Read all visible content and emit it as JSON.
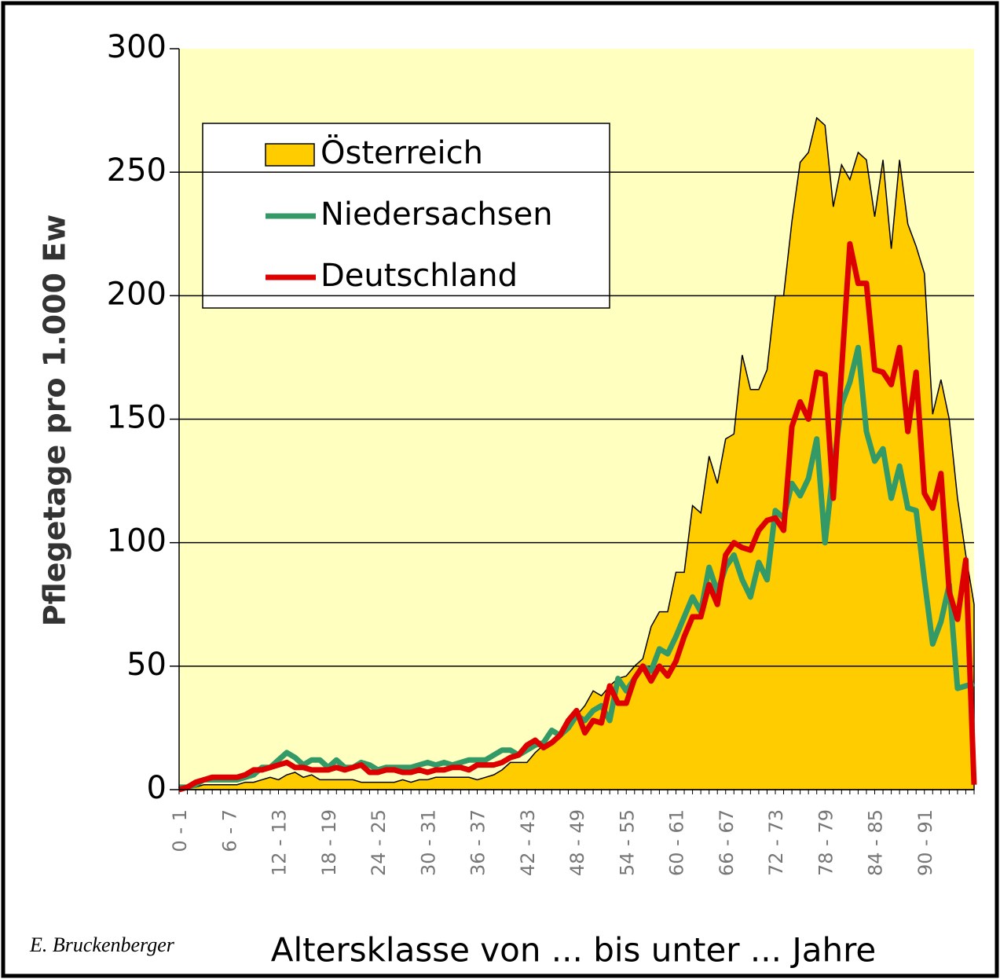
{
  "chart_data": {
    "type": "line",
    "ylabel": "Pflegetage pro 1.000 Ew",
    "xlabel": "Altersklasse von ... bis unter ... Jahre",
    "author": "E. Bruckenberger",
    "categories": [
      "0 - 1",
      null,
      null,
      null,
      null,
      null,
      "6 - 7",
      null,
      null,
      null,
      null,
      null,
      "12 - 13",
      null,
      null,
      null,
      null,
      null,
      "18 - 19",
      null,
      null,
      null,
      null,
      null,
      "24 - 25",
      null,
      null,
      null,
      null,
      null,
      "30 - 31",
      null,
      null,
      null,
      null,
      null,
      "36 - 37",
      null,
      null,
      null,
      null,
      null,
      "42 - 43",
      null,
      null,
      null,
      null,
      null,
      "48 - 49",
      null,
      null,
      null,
      null,
      null,
      "54 - 55",
      null,
      null,
      null,
      null,
      null,
      "60 - 61",
      null,
      null,
      null,
      null,
      null,
      "66 - 67",
      null,
      null,
      null,
      null,
      null,
      "72 - 73",
      null,
      null,
      null,
      null,
      null,
      "78 - 79",
      null,
      null,
      null,
      null,
      null,
      "84 - 85",
      null,
      null,
      null,
      null,
      null,
      "90 - 91",
      null,
      null,
      null,
      null,
      null,
      null
    ],
    "series": [
      {
        "name": "Österreich",
        "type": "area",
        "color": "#ffcc00",
        "values": [
          0,
          1,
          1,
          2,
          2,
          2,
          2,
          2,
          3,
          3,
          4,
          5,
          4,
          6,
          7,
          5,
          6,
          4,
          4,
          4,
          4,
          4,
          3,
          3,
          3,
          3,
          3,
          4,
          3,
          4,
          4,
          5,
          5,
          5,
          5,
          5,
          4,
          5,
          6,
          8,
          11,
          11,
          11,
          15,
          18,
          20,
          22,
          25,
          30,
          34,
          40,
          38,
          42,
          45,
          46,
          50,
          53,
          66,
          72,
          72,
          88,
          88,
          115,
          112,
          135,
          124,
          142,
          144,
          176,
          162,
          162,
          170,
          200,
          200,
          230,
          254,
          258,
          272,
          269,
          236,
          253,
          247,
          258,
          255,
          232,
          255,
          219,
          255,
          229,
          220,
          209,
          152,
          166,
          150,
          118,
          95,
          75
        ]
      },
      {
        "name": "Niedersachsen",
        "type": "line",
        "color": "#339966",
        "values": [
          1,
          1,
          2,
          4,
          4,
          4,
          4,
          4,
          5,
          6,
          9,
          9,
          12,
          15,
          13,
          10,
          12,
          12,
          9,
          12,
          9,
          9,
          11,
          10,
          8,
          9,
          9,
          9,
          9,
          10,
          11,
          10,
          11,
          10,
          11,
          12,
          12,
          12,
          14,
          16,
          16,
          14,
          16,
          18,
          19,
          24,
          22,
          25,
          30,
          28,
          32,
          34,
          28,
          45,
          40,
          45,
          50,
          48,
          57,
          55,
          62,
          70,
          78,
          72,
          90,
          80,
          90,
          95,
          85,
          78,
          92,
          85,
          113,
          110,
          124,
          119,
          126,
          142,
          100,
          130,
          156,
          165,
          179,
          145,
          133,
          138,
          118,
          131,
          114,
          113,
          85,
          59,
          68,
          83,
          41,
          42,
          43
        ]
      },
      {
        "name": "Deutschland",
        "type": "line",
        "color": "#dd0000",
        "values": [
          0,
          1,
          3,
          4,
          5,
          5,
          5,
          5,
          6,
          8,
          8,
          9,
          10,
          11,
          9,
          9,
          8,
          8,
          8,
          9,
          8,
          9,
          10,
          7,
          7,
          8,
          8,
          7,
          7,
          8,
          7,
          8,
          8,
          9,
          9,
          8,
          10,
          10,
          10,
          11,
          13,
          14,
          18,
          20,
          17,
          19,
          22,
          28,
          32,
          23,
          28,
          27,
          42,
          35,
          35,
          45,
          50,
          44,
          50,
          46,
          52,
          62,
          70,
          70,
          83,
          75,
          95,
          100,
          98,
          97,
          105,
          109,
          110,
          105,
          147,
          157,
          150,
          169,
          168,
          118,
          170,
          221,
          205,
          205,
          170,
          169,
          164,
          179,
          145,
          169,
          120,
          114,
          128,
          80,
          69,
          93,
          2
        ]
      }
    ],
    "ylim": [
      0,
      300
    ],
    "yticks": [
      0,
      50,
      100,
      150,
      200,
      250,
      300
    ],
    "grid": true,
    "legend": "upper left"
  }
}
